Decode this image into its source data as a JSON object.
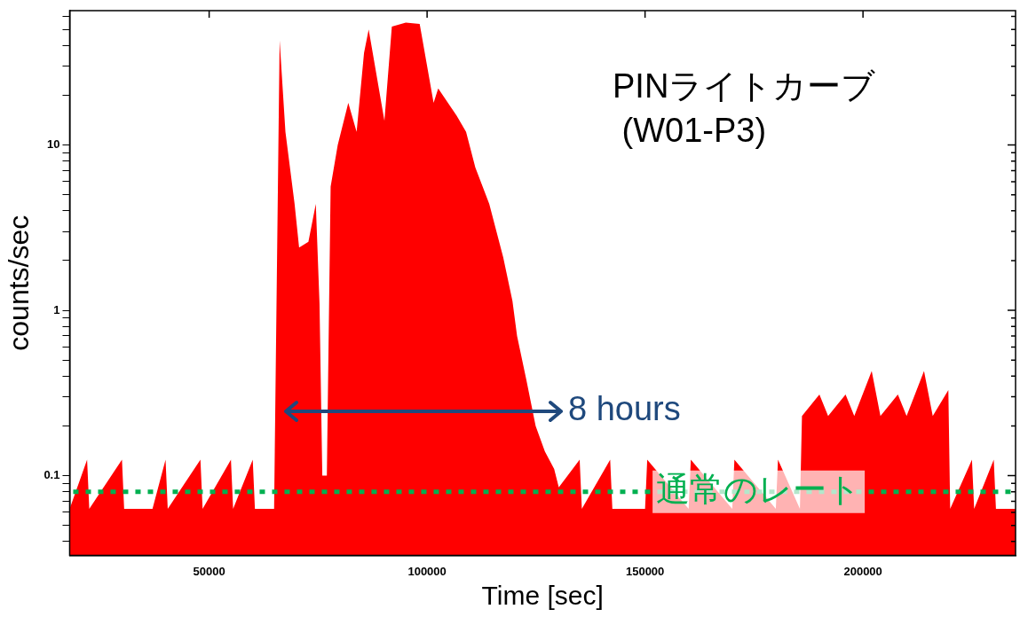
{
  "chart_data": {
    "type": "area",
    "xlabel": "Time [sec]",
    "ylabel": "counts/sec",
    "log": "y",
    "grid": false,
    "legend": false,
    "marker": "none",
    "xlim": [
      18000,
      235000
    ],
    "xticks": [
      50000,
      100000,
      150000,
      200000
    ],
    "ylim": [
      0.033,
      65
    ],
    "yticks": [
      {
        "value": 0.04,
        "label": null
      },
      {
        "value": 0.05,
        "label": null
      },
      {
        "value": 0.06,
        "label": null
      },
      {
        "value": 0.07,
        "label": null
      },
      {
        "value": 0.08,
        "label": null
      },
      {
        "value": 0.09,
        "label": null
      },
      0.1,
      {
        "value": 0.2,
        "label": null
      },
      {
        "value": 0.3,
        "label": null
      },
      {
        "value": 0.4,
        "label": null
      },
      {
        "value": 0.5,
        "label": null
      },
      {
        "value": 0.6,
        "label": null
      },
      {
        "value": 0.7,
        "label": null
      },
      {
        "value": 0.8,
        "label": null
      },
      {
        "value": 0.9,
        "label": null
      },
      1,
      {
        "value": 2,
        "label": null
      },
      {
        "value": 3,
        "label": null
      },
      {
        "value": 4,
        "label": null
      },
      {
        "value": 5,
        "label": null
      },
      {
        "value": 6,
        "label": null
      },
      {
        "value": 7,
        "label": null
      },
      {
        "value": 8,
        "label": null
      },
      {
        "value": 9,
        "label": null
      },
      10,
      {
        "value": 20,
        "label": null
      },
      {
        "value": 30,
        "label": null
      },
      {
        "value": 40,
        "label": null
      },
      {
        "value": 50,
        "label": null
      },
      {
        "value": 60,
        "label": null
      }
    ],
    "series": [
      {
        "color": "#ff0000",
        "x": [
          18000,
          22000,
          22500,
          30000,
          30500,
          37000,
          40000,
          40500,
          48000,
          48500,
          55000,
          55500,
          60000,
          60500,
          64900,
          66170,
          67500,
          69600,
          70640,
          72770,
          74470,
          75320,
          75960,
          77000,
          77870,
          79500,
          81920,
          83830,
          85530,
          86600,
          90210,
          91910,
          95110,
          98300,
          101490,
          102550,
          106810,
          108940,
          111070,
          114260,
          117450,
          119580,
          120640,
          122770,
          124900,
          127020,
          129150,
          130210,
          135000,
          135500,
          142000,
          142500,
          150000,
          150500,
          160000,
          160500,
          170000,
          170500,
          180000,
          180500,
          185530,
          186000,
          190000,
          192000,
          196000,
          198000,
          202000,
          204000,
          208000,
          210000,
          214000,
          216000,
          219580,
          220000,
          225000,
          225500,
          230000,
          230500,
          235000
        ],
        "values": [
          0.063,
          0.125,
          0.063,
          0.125,
          0.063,
          0.063,
          0.125,
          0.063,
          0.125,
          0.063,
          0.125,
          0.063,
          0.125,
          0.063,
          0.063,
          43,
          12,
          4.4,
          2.4,
          2.6,
          4.4,
          1.1,
          0.1,
          0.1,
          5.6,
          10,
          18,
          12,
          36,
          50,
          14,
          52,
          55,
          54,
          18,
          22,
          15,
          12,
          7.3,
          4.4,
          2.1,
          1.14,
          0.7,
          0.38,
          0.2,
          0.14,
          0.11,
          0.085,
          0.125,
          0.063,
          0.125,
          0.063,
          0.063,
          0.125,
          0.063,
          0.125,
          0.063,
          0.125,
          0.063,
          0.125,
          0.063,
          0.23,
          0.31,
          0.23,
          0.31,
          0.23,
          0.43,
          0.23,
          0.31,
          0.23,
          0.43,
          0.23,
          0.33,
          0.063,
          0.125,
          0.063,
          0.125,
          0.063,
          0.063
        ]
      }
    ],
    "ref_lines": [
      {
        "axis": "y",
        "value": 0.08,
        "label": "通常のレート",
        "color": "#00b050",
        "line_style": "dotted"
      }
    ],
    "annotations": [
      "PINライトカーブ\n (W01-P3)",
      "8 hours"
    ]
  }
}
